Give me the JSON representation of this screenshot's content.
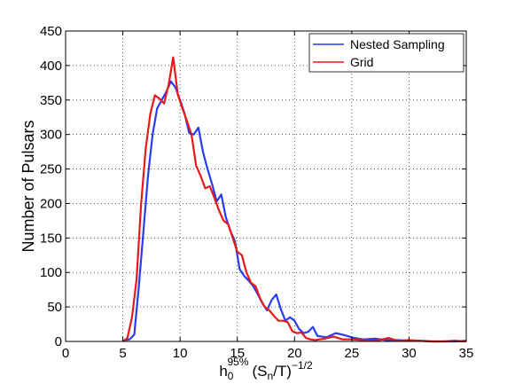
{
  "chart_data": {
    "type": "line",
    "title": "",
    "xlabel": {
      "base": "h",
      "sub": "0",
      "sup": "95%",
      "paren_open": "(S",
      "paren_sub": "n",
      "paren_rest": "/T)",
      "exponent": "−1/2"
    },
    "ylabel": "Number of Pulsars",
    "xlim": [
      0,
      35
    ],
    "ylim": [
      0,
      450
    ],
    "xticks": [
      0,
      5,
      10,
      15,
      20,
      25,
      30,
      35
    ],
    "yticks": [
      0,
      50,
      100,
      150,
      200,
      250,
      300,
      350,
      400,
      450
    ],
    "grid": true,
    "legend_position": "top-right",
    "series": [
      {
        "name": "Nested Sampling",
        "color": "#2a3cf0",
        "x": [
          5.2,
          5.6,
          6.0,
          6.4,
          6.8,
          7.2,
          7.6,
          8.0,
          8.4,
          8.8,
          9.2,
          9.6,
          10.0,
          10.4,
          10.8,
          11.2,
          11.6,
          12.0,
          12.4,
          12.8,
          13.2,
          13.6,
          14.0,
          14.4,
          14.8,
          15.2,
          15.6,
          16.0,
          16.4,
          16.8,
          17.2,
          17.6,
          18.0,
          18.4,
          18.8,
          19.2,
          19.6,
          20.0,
          20.4,
          20.8,
          21.2,
          21.6,
          22.0,
          22.8,
          23.6,
          24.4,
          25.2,
          26.0,
          27.0,
          28.0,
          29.0,
          30.0,
          31.0,
          32.0,
          33.0,
          34.0,
          35.0
        ],
        "values": [
          2,
          3,
          10,
          80,
          160,
          240,
          300,
          338,
          350,
          362,
          377,
          368,
          350,
          330,
          302,
          300,
          310,
          275,
          250,
          228,
          203,
          213,
          180,
          160,
          145,
          105,
          95,
          88,
          80,
          68,
          55,
          45,
          60,
          68,
          47,
          30,
          35,
          30,
          18,
          12,
          14,
          21,
          8,
          6,
          12,
          9,
          5,
          3,
          4,
          2,
          2,
          1,
          1,
          0,
          0,
          0,
          1
        ]
      },
      {
        "name": "Grid",
        "color": "#e8191a",
        "x": [
          5.0,
          5.4,
          5.8,
          6.2,
          6.6,
          7.0,
          7.4,
          7.8,
          8.2,
          8.6,
          9.0,
          9.4,
          9.8,
          10.2,
          10.6,
          11.0,
          11.4,
          11.8,
          12.2,
          12.6,
          13.0,
          13.4,
          13.8,
          14.2,
          14.6,
          15.0,
          15.4,
          15.8,
          16.2,
          16.6,
          17.0,
          17.4,
          17.8,
          18.2,
          18.6,
          19.0,
          19.4,
          19.8,
          20.2,
          20.6,
          21.0,
          21.4,
          21.8,
          22.6,
          23.4,
          24.2,
          25.0,
          25.8,
          26.6,
          27.4,
          28.2,
          29.0,
          30.0,
          31.0,
          32.0,
          33.0,
          34.0,
          35.0
        ],
        "values": [
          0,
          5,
          35,
          90,
          200,
          280,
          330,
          357,
          352,
          345,
          372,
          412,
          358,
          338,
          320,
          300,
          255,
          240,
          222,
          225,
          208,
          190,
          175,
          170,
          150,
          130,
          125,
          100,
          85,
          80,
          62,
          50,
          45,
          37,
          30,
          30,
          28,
          15,
          12,
          13,
          5,
          3,
          2,
          4,
          7,
          3,
          3,
          2,
          1,
          2,
          5,
          1,
          2,
          1,
          0,
          0,
          1,
          0
        ]
      }
    ]
  }
}
